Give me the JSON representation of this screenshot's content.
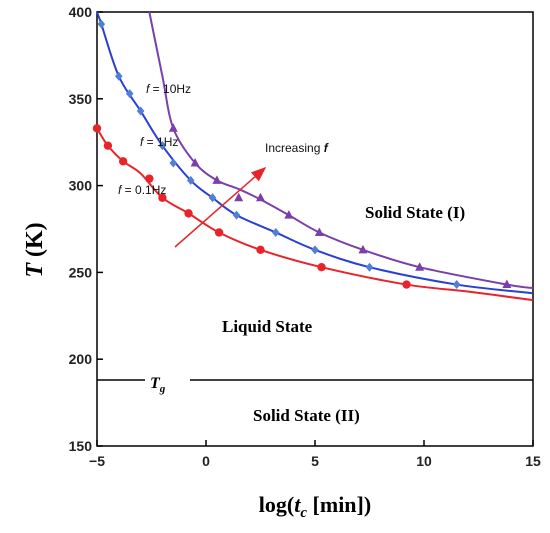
{
  "chart_data": {
    "type": "line",
    "xlabel_prefix": "log(",
    "xlabel_var": "t",
    "xlabel_sub": "c",
    "xlabel_suffix": " [min])",
    "ylabel_var": "T",
    "ylabel_unit": " (K)",
    "xlim": [
      -5,
      15
    ],
    "ylim": [
      150,
      400
    ],
    "xticks": [
      "−5",
      "0",
      "5",
      "10",
      "15"
    ],
    "xtick_values": [
      -5,
      0,
      5,
      10,
      15
    ],
    "yticks": [
      "150",
      "200",
      "250",
      "300",
      "350",
      "400"
    ],
    "ytick_values": [
      150,
      200,
      250,
      300,
      350,
      400
    ],
    "series": [
      {
        "name": "f = 0.1Hz",
        "color": "#e8242b",
        "marker": "circle",
        "points": [
          [
            -5,
            333
          ],
          [
            -4.5,
            323
          ],
          [
            -3.8,
            314
          ],
          [
            -2.6,
            304
          ],
          [
            -2,
            293
          ],
          [
            -0.8,
            284
          ],
          [
            0.6,
            273
          ],
          [
            2.5,
            263
          ],
          [
            5.3,
            253
          ],
          [
            9.2,
            243
          ]
        ],
        "curve": [
          [
            -5,
            333
          ],
          [
            -4.5,
            323
          ],
          [
            -3.8,
            314
          ],
          [
            -3,
            307
          ],
          [
            -2,
            293
          ],
          [
            -0.8,
            284
          ],
          [
            0.6,
            273
          ],
          [
            2.5,
            263
          ],
          [
            5.3,
            253
          ],
          [
            9.2,
            243
          ],
          [
            12,
            239
          ],
          [
            15,
            234
          ]
        ]
      },
      {
        "name": "f = 1Hz",
        "color": "#2a3fd4",
        "marker": "diamond",
        "points": [
          [
            -4.8,
            393
          ],
          [
            -4,
            363
          ],
          [
            -3.5,
            353
          ],
          [
            -3,
            343
          ],
          [
            -2,
            323
          ],
          [
            -1.5,
            313
          ],
          [
            -0.7,
            303
          ],
          [
            0.3,
            293
          ],
          [
            1.4,
            283
          ],
          [
            3.2,
            273
          ],
          [
            5,
            263
          ],
          [
            7.5,
            253
          ],
          [
            11.5,
            243
          ]
        ],
        "curve": [
          [
            -5,
            400
          ],
          [
            -4.8,
            393
          ],
          [
            -4,
            363
          ],
          [
            -3,
            343
          ],
          [
            -2,
            323
          ],
          [
            -0.7,
            303
          ],
          [
            0.3,
            293
          ],
          [
            1.4,
            283
          ],
          [
            3.2,
            273
          ],
          [
            5,
            263
          ],
          [
            7.5,
            253
          ],
          [
            11.5,
            243
          ],
          [
            15,
            238
          ]
        ]
      },
      {
        "name": "f = 10Hz",
        "color": "#7b3fa8",
        "marker": "triangle",
        "points": [
          [
            -1.5,
            333
          ],
          [
            -0.5,
            313
          ],
          [
            0.5,
            303
          ],
          [
            1.5,
            293
          ],
          [
            2.5,
            293
          ],
          [
            3.8,
            283
          ],
          [
            5.2,
            273
          ],
          [
            7.2,
            263
          ],
          [
            9.8,
            253
          ],
          [
            13.8,
            243
          ]
        ],
        "curve": [
          [
            -2.6,
            400
          ],
          [
            -2,
            363
          ],
          [
            -1.5,
            333
          ],
          [
            -0.5,
            313
          ],
          [
            0.5,
            303
          ],
          [
            1.5,
            298
          ],
          [
            2.5,
            292
          ],
          [
            3.8,
            283
          ],
          [
            5.2,
            273
          ],
          [
            7.2,
            263
          ],
          [
            9.8,
            253
          ],
          [
            13.8,
            243
          ],
          [
            15,
            241
          ]
        ]
      }
    ],
    "tg": {
      "value": 188,
      "label_var": "T",
      "label_sub": "g"
    },
    "annotations": {
      "f10": {
        "prefix": "f",
        "text": " = 10Hz"
      },
      "f1": {
        "prefix": "f",
        "text": " = 1Hz"
      },
      "f01": {
        "prefix": "f",
        "text": " = 0.1Hz"
      },
      "increasing_text": "Increasing ",
      "increasing_var": "f",
      "solid1": "Solid State (I)",
      "liquid": "Liquid State",
      "solid2": "Solid State (II)"
    },
    "arrow_color": "#e8242b"
  }
}
